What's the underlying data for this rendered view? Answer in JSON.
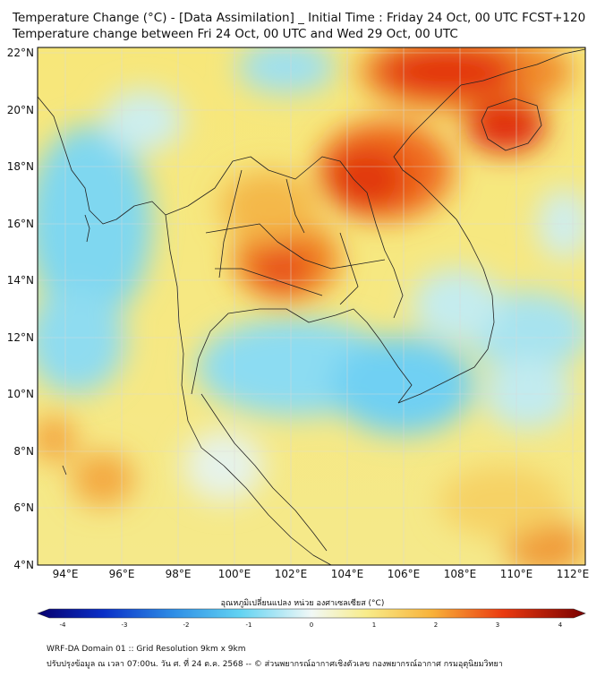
{
  "header": {
    "title_line1": "Temperature Change (°C) - [Data Assimilation] _ Initial Time : Friday 24 Oct, 00 UTC FCST+120",
    "title_line2": "Temperature change between Fri 24 Oct, 00 UTC and Wed 29 Oct, 00 UTC"
  },
  "map": {
    "lat_labels": [
      "22°N",
      "20°N",
      "18°N",
      "16°N",
      "14°N",
      "12°N",
      "10°N",
      "8°N",
      "6°N",
      "4°N"
    ],
    "lat_values": [
      22,
      20,
      18,
      16,
      14,
      12,
      10,
      8,
      6,
      4
    ],
    "lon_labels": [
      "94°E",
      "96°E",
      "98°E",
      "100°E",
      "102°E",
      "104°E",
      "106°E",
      "108°E",
      "110°E",
      "112°E"
    ],
    "lon_values": [
      94,
      96,
      98,
      100,
      102,
      104,
      106,
      108,
      110,
      112
    ],
    "extent": {
      "lon_min": 93,
      "lon_max": 112.5,
      "lat_min": 4,
      "lat_max": 22.2
    },
    "temperature_change_hotspots": [
      {
        "lon": 106.0,
        "lat": 21.5,
        "value": 3.0
      },
      {
        "lon": 110.0,
        "lat": 19.5,
        "value": 3.0
      },
      {
        "lon": 104.5,
        "lat": 17.0,
        "value": 2.8
      },
      {
        "lon": 101.8,
        "lat": 14.5,
        "value": 2.5
      },
      {
        "lon": 102.5,
        "lat": 15.5,
        "value": 2.2
      },
      {
        "lon": 93.2,
        "lat": 8.5,
        "value": 2.4
      },
      {
        "lon": 95.8,
        "lat": 7.0,
        "value": 2.3
      },
      {
        "lon": 111.0,
        "lat": 4.5,
        "value": 2.5
      },
      {
        "lon": 102.0,
        "lat": 21.5,
        "value": -1.2
      },
      {
        "lon": 95.0,
        "lat": 14.5,
        "value": -1.0
      },
      {
        "lon": 104.0,
        "lat": 11.0,
        "value": -1.3
      },
      {
        "lon": 102.0,
        "lat": 10.5,
        "value": -0.8
      },
      {
        "lon": 109.0,
        "lat": 11.5,
        "value": -0.8
      },
      {
        "lon": 108.0,
        "lat": 14.0,
        "value": -0.7
      },
      {
        "lon": 95.0,
        "lat": 18.5,
        "value": -0.6
      }
    ]
  },
  "colorbar": {
    "label": "อุณหภูมิเปลี่ยนแปลง หน่วย องศาเซลเซียส (°C)",
    "ticks": [
      "-4",
      "-3",
      "-2",
      "-1",
      "0",
      "1",
      "2",
      "3",
      "4"
    ],
    "tick_values": [
      -4,
      -3,
      -2,
      -1,
      0,
      1,
      2,
      3,
      4
    ],
    "range": [
      -4,
      4
    ]
  },
  "footer": {
    "line1": "WRF-DA Domain 01 :: Grid Resolution 9km x 9km",
    "line2": "ปรับปรุงข้อมูล ณ เวลา 07:00น. วัน ศ. ที่ 24 ต.ค. 2568 -- © ส่วนพยากรณ์อากาศเชิงตัวเลข กองพยากรณ์อากาศ กรมอุตุนิยมวิทยา"
  }
}
